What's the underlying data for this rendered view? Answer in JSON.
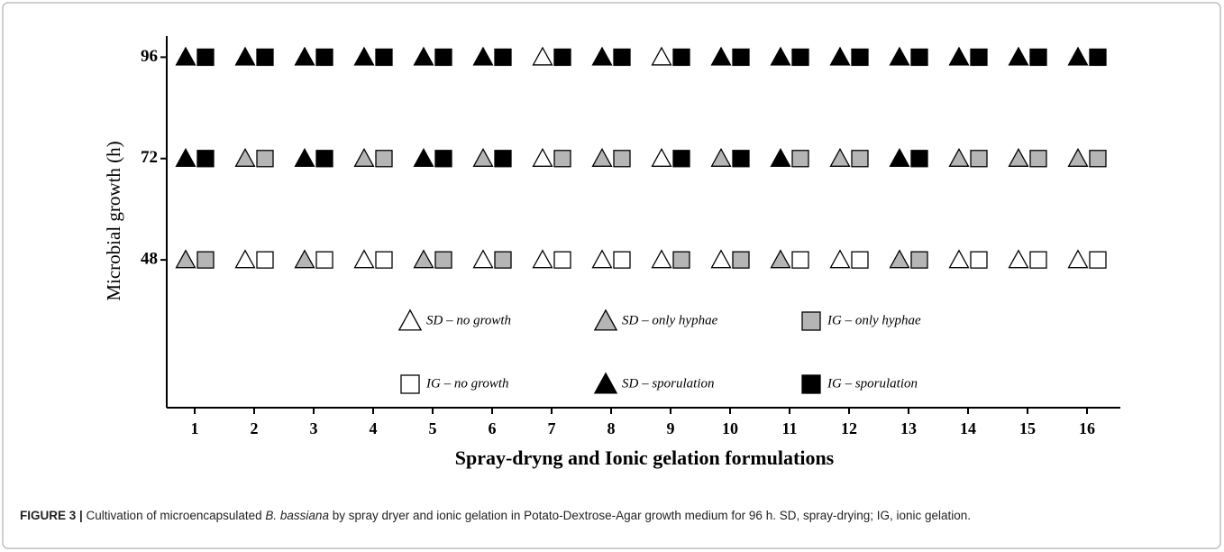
{
  "chart_data": {
    "type": "status-grid",
    "ylabel": "Microbial growth (h)",
    "xlabel": "Spray-dryng and Ionic gelation formulations",
    "categories": [
      "1",
      "2",
      "3",
      "4",
      "5",
      "6",
      "7",
      "8",
      "9",
      "10",
      "11",
      "12",
      "13",
      "14",
      "15",
      "16"
    ],
    "ylim": [
      13,
      101
    ],
    "yticks": [
      48,
      72,
      96
    ],
    "legend": [
      {
        "label": "SD – no growth",
        "shape": "triangle",
        "fill": "#ffffff"
      },
      {
        "label": "SD – only hyphae",
        "shape": "triangle",
        "fill": "#b5b5b5"
      },
      {
        "label": "IG – only hyphae",
        "shape": "square",
        "fill": "#b5b5b5"
      },
      {
        "label": "IG – no growth",
        "shape": "square",
        "fill": "#ffffff"
      },
      {
        "label": "SD – sporulation",
        "shape": "triangle",
        "fill": "#000000"
      },
      {
        "label": "IG – sporulation",
        "shape": "square",
        "fill": "#000000"
      }
    ],
    "rows": [
      {
        "sd": [
          "SD – only hyphae",
          "SD – no growth",
          "SD – only hyphae",
          "SD – no growth",
          "SD – only hyphae",
          "SD – no growth",
          "SD – no growth",
          "SD – no growth",
          "SD – no growth",
          "SD – no growth",
          "SD – only hyphae",
          "SD – no growth",
          "SD – only hyphae",
          "SD – no growth",
          "SD – no growth",
          "SD – no growth"
        ],
        "ig": [
          "IG – only hyphae",
          "IG – no growth",
          "IG – no growth",
          "IG – no growth",
          "IG – only hyphae",
          "IG – only hyphae",
          "IG – no growth",
          "IG – no growth",
          "IG – only hyphae",
          "IG – only hyphae",
          "IG – no growth",
          "IG – no growth",
          "IG – only hyphae",
          "IG – no growth",
          "IG – no growth",
          "IG – no growth"
        ]
      },
      {
        "sd": [
          "SD – sporulation",
          "SD – only hyphae",
          "SD – sporulation",
          "SD – only hyphae",
          "SD – sporulation",
          "SD – only hyphae",
          "SD – no growth",
          "SD – only hyphae",
          "SD – no growth",
          "SD – only hyphae",
          "SD – sporulation",
          "SD – only hyphae",
          "SD – sporulation",
          "SD – only hyphae",
          "SD – only hyphae",
          "SD – only hyphae"
        ],
        "ig": [
          "IG – sporulation",
          "IG – only hyphae",
          "IG – sporulation",
          "IG – only hyphae",
          "IG – sporulation",
          "IG – sporulation",
          "IG – only hyphae",
          "IG – only hyphae",
          "IG – sporulation",
          "IG – sporulation",
          "IG – only hyphae",
          "IG – only hyphae",
          "IG – sporulation",
          "IG – only hyphae",
          "IG – only hyphae",
          "IG – only hyphae"
        ]
      },
      {
        "sd": [
          "SD – sporulation",
          "SD – sporulation",
          "SD – sporulation",
          "SD – sporulation",
          "SD – sporulation",
          "SD – sporulation",
          "SD – no growth",
          "SD – sporulation",
          "SD – no growth",
          "SD – sporulation",
          "SD – sporulation",
          "SD – sporulation",
          "SD – sporulation",
          "SD – sporulation",
          "SD – sporulation",
          "SD – sporulation"
        ],
        "ig": [
          "IG – sporulation",
          "IG – sporulation",
          "IG – sporulation",
          "IG – sporulation",
          "IG – sporulation",
          "IG – sporulation",
          "IG – sporulation",
          "IG – sporulation",
          "IG – sporulation",
          "IG – sporulation",
          "IG – sporulation",
          "IG – sporulation",
          "IG – sporulation",
          "IG – sporulation",
          "IG – sporulation",
          "IG – sporulation"
        ]
      }
    ]
  },
  "caption": {
    "label": "FIGURE 3 |",
    "parts": [
      " Cultivation of microencapsulated ",
      "B. bassiana",
      " by spray dryer and ionic gelation in Potato-Dextrose-Agar growth medium for 96 h. SD, spray-drying; IG, ionic gelation."
    ]
  }
}
